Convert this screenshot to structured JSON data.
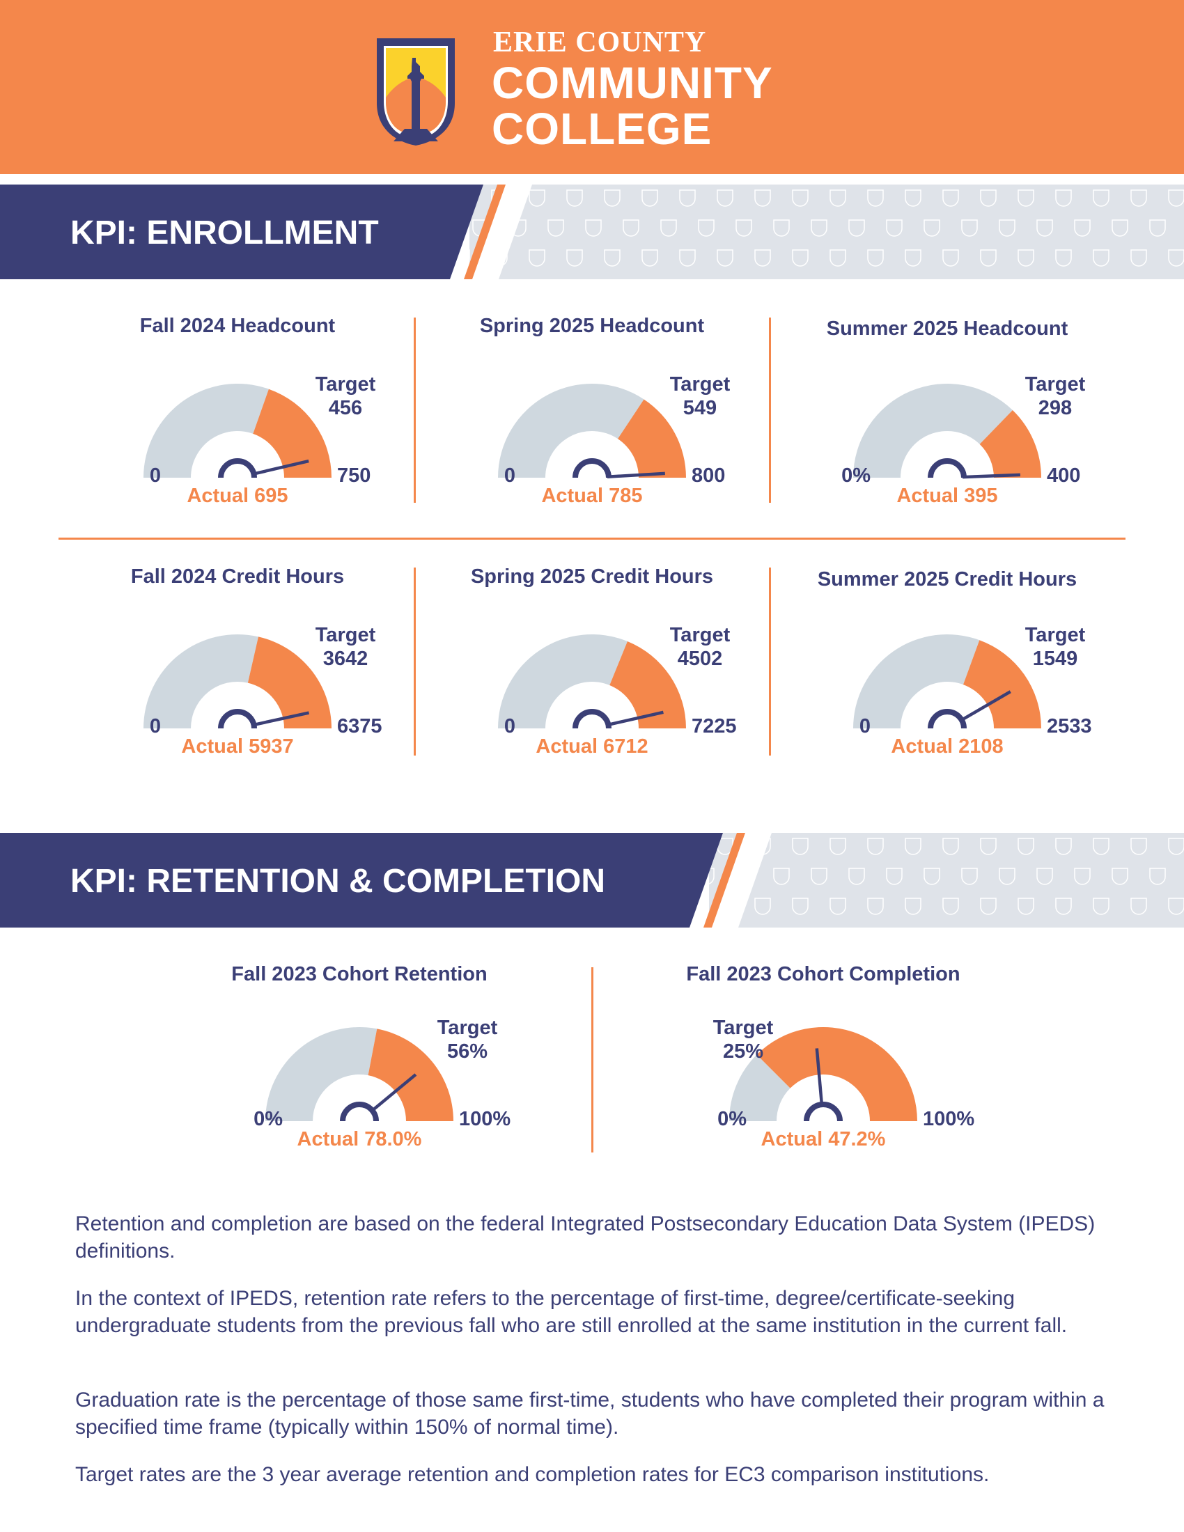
{
  "header": {
    "logo_line1": "ERIE COUNTY",
    "logo_line2": "COMMUNITY",
    "logo_line3": "COLLEGE"
  },
  "colors": {
    "orange": "#F4874B",
    "navy": "#3B3F76",
    "gauge_grey": "#CFD8DF",
    "pattern_bg": "#DFE3E9",
    "logo_yellow": "#FBD22C"
  },
  "sections": [
    {
      "title": "KPI: ENROLLMENT"
    },
    {
      "title": "KPI: RETENTION & COMPLETION"
    }
  ],
  "gauges": [
    {
      "title": "Fall 2024 Headcount",
      "min": 0,
      "max": 750,
      "target": 456,
      "actual": 695,
      "min_label": "0",
      "max_label": "750",
      "target_word": "Target",
      "target_label": "456",
      "actual_label": "Actual 695"
    },
    {
      "title": "Spring 2025 Headcount",
      "min": 0,
      "max": 800,
      "target": 549,
      "actual": 785,
      "min_label": "0",
      "max_label": "800",
      "target_word": "Target",
      "target_label": "549",
      "actual_label": "Actual 785"
    },
    {
      "title": "Summer 2025 Headcount",
      "min": 0,
      "max": 400,
      "target": 298,
      "actual": 395,
      "min_label": "0%",
      "max_label": "400",
      "target_word": "Target",
      "target_label": "298",
      "actual_label": "Actual 395"
    },
    {
      "title": "Fall 2024 Credit Hours",
      "min": 0,
      "max": 6375,
      "target": 3642,
      "actual": 5937,
      "min_label": "0",
      "max_label": "6375",
      "target_word": "Target",
      "target_label": "3642",
      "actual_label": "Actual 5937"
    },
    {
      "title": "Spring 2025 Credit Hours",
      "min": 0,
      "max": 7225,
      "target": 4502,
      "actual": 6712,
      "min_label": "0",
      "max_label": "7225",
      "target_word": "Target",
      "target_label": "4502",
      "actual_label": "Actual 6712"
    },
    {
      "title": "Summer 2025 Credit Hours",
      "min": 0,
      "max": 2533,
      "target": 1549,
      "actual": 2108,
      "min_label": "0",
      "max_label": "2533",
      "target_word": "Target",
      "target_label": "1549",
      "actual_label": "Actual 2108"
    },
    {
      "title": "Fall 2023 Cohort Retention",
      "min": 0,
      "max": 100,
      "target": 56,
      "actual": 78.0,
      "min_label": "0%",
      "max_label": "100%",
      "target_word": "Target",
      "target_label": "56%",
      "actual_label": "Actual 78.0%"
    },
    {
      "title": "Fall 2023 Cohort Completion",
      "min": 0,
      "max": 100,
      "target": 25,
      "actual": 47.2,
      "min_label": "0%",
      "max_label": "100%",
      "target_word": "Target",
      "target_label": "25%",
      "actual_label": "Actual 47.2%"
    }
  ],
  "notes": [
    "Retention and completion are based on the federal Integrated Postsecondary Education Data System (IPEDS) definitions.",
    "In the context of IPEDS, retention rate refers to the percentage of first-time, degree/certificate-seeking undergraduate students from the previous fall who are still enrolled at the same institution in the current fall.",
    "Graduation rate is the percentage of those same first-time, students who have completed their program within a specified time frame (typically within 150% of normal time).",
    "Target rates are the 3 year average retention and completion rates for EC3 comparison institutions."
  ]
}
